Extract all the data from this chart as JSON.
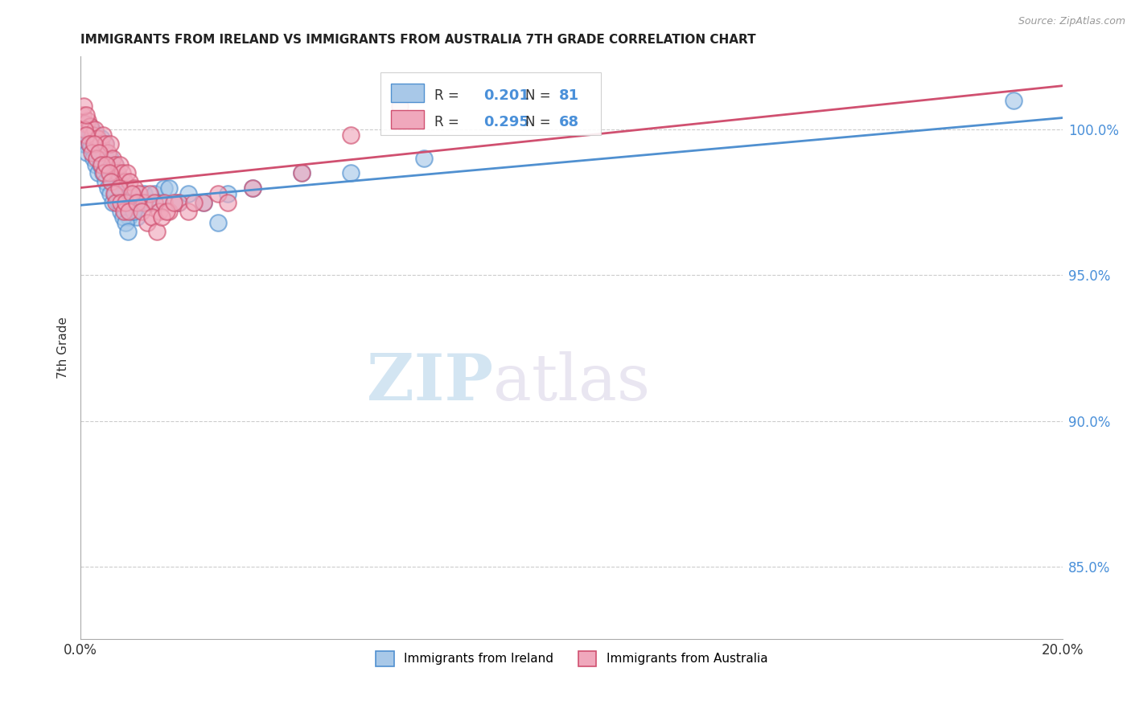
{
  "title": "IMMIGRANTS FROM IRELAND VS IMMIGRANTS FROM AUSTRALIA 7TH GRADE CORRELATION CHART",
  "source_text": "Source: ZipAtlas.com",
  "ylabel": "7th Grade",
  "right_yticks": [
    85.0,
    90.0,
    95.0,
    100.0
  ],
  "right_ytick_labels": [
    "85.0%",
    "90.0%",
    "95.0%",
    "100.0%"
  ],
  "xlim": [
    0.0,
    20.0
  ],
  "ylim": [
    82.5,
    102.5
  ],
  "ireland_color": "#a8c8e8",
  "australia_color": "#f0a8bc",
  "ireland_line_color": "#5090d0",
  "australia_line_color": "#d05070",
  "ireland_label": "Immigrants from Ireland",
  "australia_label": "Immigrants from Australia",
  "watermark_zip": "ZIP",
  "watermark_atlas": "atlas",
  "ireland_x": [
    0.05,
    0.08,
    0.1,
    0.12,
    0.15,
    0.18,
    0.2,
    0.22,
    0.25,
    0.28,
    0.3,
    0.32,
    0.35,
    0.38,
    0.4,
    0.42,
    0.45,
    0.48,
    0.5,
    0.52,
    0.55,
    0.58,
    0.6,
    0.62,
    0.65,
    0.68,
    0.7,
    0.72,
    0.75,
    0.78,
    0.8,
    0.82,
    0.85,
    0.88,
    0.9,
    0.92,
    0.95,
    0.98,
    1.0,
    1.05,
    1.1,
    1.15,
    1.2,
    1.3,
    1.4,
    1.5,
    1.6,
    1.7,
    1.8,
    2.0,
    2.2,
    2.5,
    3.0,
    3.5,
    4.5,
    5.5,
    7.0,
    19.0,
    0.06,
    0.09,
    0.13,
    0.17,
    0.21,
    0.26,
    0.31,
    0.36,
    0.41,
    0.46,
    0.51,
    0.56,
    0.61,
    0.66,
    0.71,
    0.76,
    0.81,
    0.86,
    0.91,
    0.96,
    1.02,
    1.08,
    2.8
  ],
  "ireland_y": [
    99.5,
    99.8,
    100.2,
    99.6,
    99.9,
    100.1,
    99.8,
    100.0,
    99.7,
    99.5,
    99.2,
    99.8,
    99.4,
    99.6,
    99.3,
    99.7,
    98.8,
    99.2,
    99.5,
    99.0,
    98.5,
    98.8,
    99.0,
    98.5,
    98.2,
    98.6,
    98.8,
    97.8,
    98.5,
    98.2,
    97.5,
    98.0,
    97.8,
    97.5,
    97.8,
    97.2,
    97.5,
    97.0,
    97.8,
    97.2,
    97.5,
    97.0,
    97.5,
    97.8,
    97.5,
    97.8,
    97.5,
    98.0,
    98.0,
    97.5,
    97.8,
    97.5,
    97.8,
    98.0,
    98.5,
    98.5,
    99.0,
    101.0,
    99.8,
    99.5,
    99.2,
    99.6,
    99.4,
    99.0,
    98.8,
    98.5,
    98.8,
    98.5,
    98.2,
    98.0,
    97.8,
    97.5,
    97.8,
    97.5,
    97.2,
    97.0,
    96.8,
    96.5,
    97.5,
    97.2,
    96.8
  ],
  "australia_x": [
    0.05,
    0.1,
    0.15,
    0.2,
    0.25,
    0.3,
    0.35,
    0.4,
    0.45,
    0.5,
    0.55,
    0.6,
    0.65,
    0.7,
    0.75,
    0.8,
    0.85,
    0.9,
    0.95,
    1.0,
    1.1,
    1.2,
    1.3,
    1.4,
    1.5,
    1.6,
    1.7,
    1.8,
    2.0,
    2.2,
    2.5,
    2.8,
    3.0,
    3.5,
    4.5,
    5.5,
    0.08,
    0.12,
    0.18,
    0.22,
    0.28,
    0.32,
    0.38,
    0.42,
    0.48,
    0.52,
    0.58,
    0.62,
    0.68,
    0.72,
    0.78,
    0.82,
    0.88,
    0.92,
    0.98,
    1.05,
    1.15,
    1.25,
    1.35,
    1.45,
    1.55,
    1.65,
    1.75,
    1.9,
    2.3,
    6.5,
    0.07,
    0.11
  ],
  "australia_y": [
    100.5,
    100.2,
    100.3,
    100.1,
    99.8,
    100.0,
    99.7,
    99.5,
    99.8,
    99.5,
    99.2,
    99.5,
    99.0,
    98.8,
    98.5,
    98.8,
    98.5,
    98.2,
    98.5,
    98.2,
    98.0,
    97.8,
    97.5,
    97.8,
    97.5,
    97.2,
    97.5,
    97.2,
    97.5,
    97.2,
    97.5,
    97.8,
    97.5,
    98.0,
    98.5,
    99.8,
    100.0,
    99.8,
    99.5,
    99.2,
    99.5,
    99.0,
    99.2,
    98.8,
    98.5,
    98.8,
    98.5,
    98.2,
    97.8,
    97.5,
    98.0,
    97.5,
    97.2,
    97.5,
    97.2,
    97.8,
    97.5,
    97.2,
    96.8,
    97.0,
    96.5,
    97.0,
    97.2,
    97.5,
    97.5,
    100.8,
    100.8,
    100.5
  ],
  "ireland_trendline_x": [
    0.0,
    20.0
  ],
  "ireland_trendline_y": [
    97.4,
    100.4
  ],
  "australia_trendline_x": [
    0.0,
    20.0
  ],
  "australia_trendline_y": [
    98.0,
    101.5
  ]
}
